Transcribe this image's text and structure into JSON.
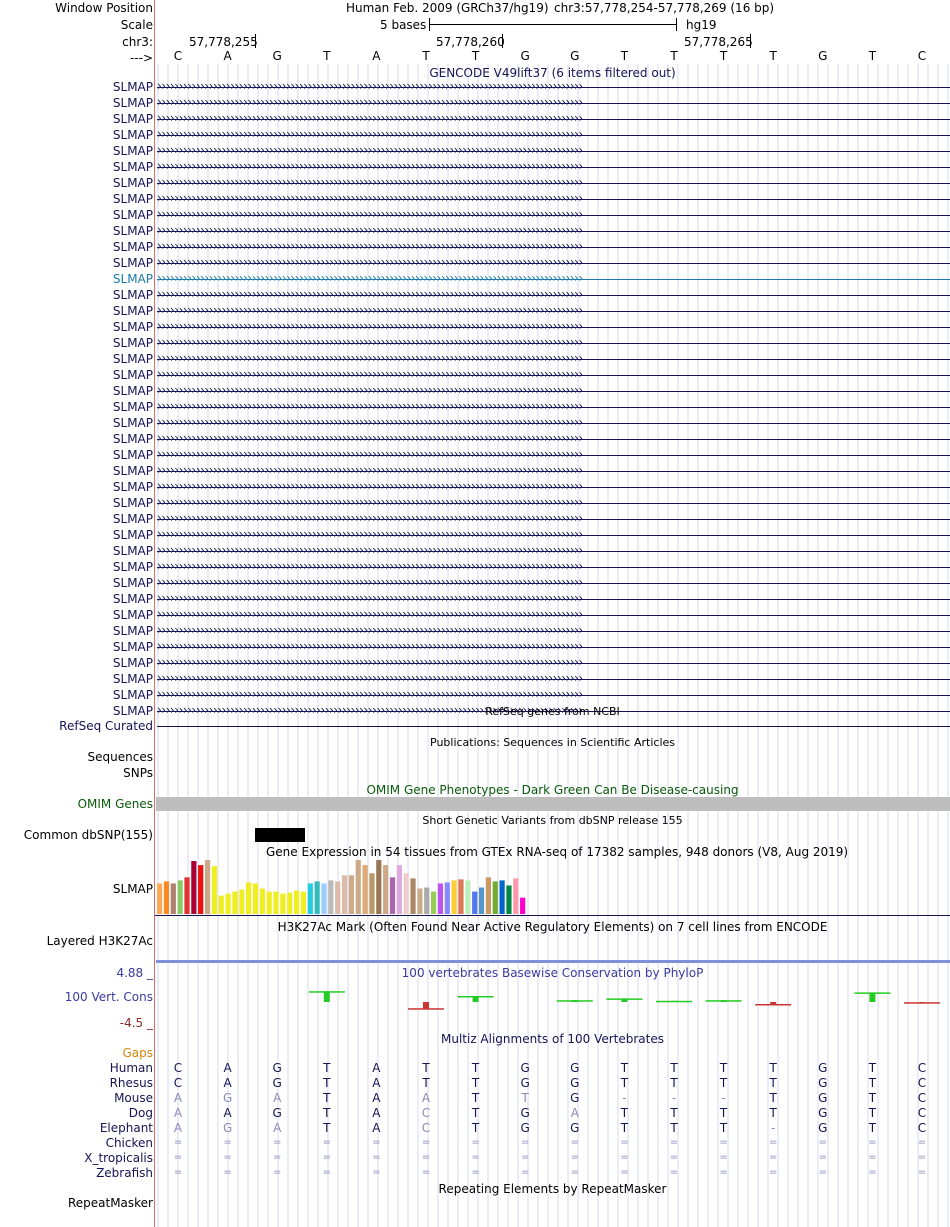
{
  "header": {
    "window_position_label": "Window Position",
    "assembly": "Human Feb. 2009 (GRCh37/hg19)",
    "position": "chr3:57,778,254-57,778,269 (16 bp)",
    "scale_label": "Scale",
    "scale_text": "5 bases",
    "db": "hg19",
    "chrom_label": "chr3:",
    "ticks": [
      "57,778,255",
      "57,778,260",
      "57,778,265"
    ],
    "arrow_label": "--->"
  },
  "bases": [
    "C",
    "A",
    "G",
    "T",
    "A",
    "T",
    "T",
    "G",
    "G",
    "T",
    "T",
    "T",
    "T",
    "G",
    "T",
    "C"
  ],
  "gencode": {
    "title": "GENCODE V49lift37 (6 items filtered out)",
    "items": [
      "SLMAP",
      "SLMAP",
      "SLMAP",
      "SLMAP",
      "SLMAP",
      "SLMAP",
      "SLMAP",
      "SLMAP",
      "SLMAP",
      "SLMAP",
      "SLMAP",
      "SLMAP",
      "SLMAP",
      "SLMAP",
      "SLMAP",
      "SLMAP",
      "SLMAP",
      "SLMAP",
      "SLMAP",
      "SLMAP",
      "SLMAP",
      "SLMAP",
      "SLMAP",
      "SLMAP",
      "SLMAP",
      "SLMAP",
      "SLMAP",
      "SLMAP",
      "SLMAP",
      "SLMAP",
      "SLMAP",
      "SLMAP",
      "SLMAP",
      "SLMAP",
      "SLMAP",
      "SLMAP",
      "SLMAP",
      "SLMAP",
      "SLMAP",
      "SLMAP"
    ],
    "highlight_index": 12
  },
  "refseq": {
    "title": "RefSeq genes from NCBI",
    "label": "RefSeq Curated"
  },
  "pubs": {
    "title": "Publications: Sequences in Scientific Articles",
    "label_1": "Sequences",
    "label_2": "SNPs"
  },
  "omim": {
    "title": "OMIM Gene Phenotypes - Dark Green Can Be Disease-causing",
    "label": "OMIM Genes"
  },
  "dbsnp": {
    "title": "Short Genetic Variants from dbSNP release 155",
    "label": "Common dbSNP(155)"
  },
  "gtex": {
    "title": "Gene Expression in 54 tissues from GTEx RNA-seq of 17382 samples, 948 donors (V8, Aug 2019)",
    "label": "SLMAP",
    "values": [
      30,
      32,
      30,
      33,
      36,
      52,
      48,
      53,
      47,
      18,
      20,
      22,
      24,
      31,
      30,
      25,
      22,
      22,
      20,
      21,
      23,
      22,
      30,
      32,
      30,
      33,
      32,
      38,
      38,
      53,
      48,
      40,
      53,
      48,
      36,
      48,
      40,
      35,
      25,
      26,
      22,
      30,
      31,
      33,
      34,
      33,
      22,
      26,
      36,
      32,
      33,
      28,
      35,
      16
    ],
    "colors": [
      "#ffaa55",
      "#ff8822",
      "#b08070",
      "#88cc66",
      "#dd3333",
      "#aa0033",
      "#ee1111",
      "#ccaa88",
      "#eeee22",
      "#eeee22",
      "#eeee22",
      "#eeee22",
      "#eeee22",
      "#eeee22",
      "#eeee22",
      "#eeee22",
      "#eeee22",
      "#eeee22",
      "#eeee22",
      "#eeee22",
      "#eeee22",
      "#eeee22",
      "#22ccdd",
      "#33bbbb",
      "#99ccff",
      "#bbbbbb",
      "#ddbbaa",
      "#ddbbaa",
      "#ccaa88",
      "#ccaa88",
      "#ddaa77",
      "#bb9966",
      "#997755",
      "#ccaa88",
      "#aa66aa",
      "#ddaadd",
      "#eecccc",
      "#aa8866",
      "#ccaa88",
      "#aaaaaa",
      "#99cc55",
      "#bb55ee",
      "#8888ff",
      "#ffcc33",
      "#dd7755",
      "#bbeebb",
      "#5577ee",
      "#5599cc",
      "#cc9966",
      "#77aa33",
      "#0066cc",
      "#008844",
      "#ff99aa",
      "#ff00cc"
    ]
  },
  "h3k27ac": {
    "title": "H3K27Ac Mark (Often Found Near Active Regulatory Elements) on 7 cell lines from ENCODE",
    "label": "Layered H3K27Ac"
  },
  "cons": {
    "title": "100 vertebrates Basewise Conservation by PhyloP",
    "label": "100 Vert. Cons",
    "max": "4.88 _",
    "min": "-4.5 _",
    "scores": [
      0,
      0,
      0,
      1.8,
      0,
      -1.2,
      1.0,
      0,
      0.3,
      0.6,
      0.2,
      0.3,
      -0.5,
      0,
      1.6,
      -0.2
    ]
  },
  "multiz": {
    "title": "Multiz Alignments of 100 Vertebrates",
    "gaps_label": "Gaps",
    "species": [
      {
        "name": "Human",
        "bases": [
          "C",
          "A",
          "G",
          "T",
          "A",
          "T",
          "T",
          "G",
          "G",
          "T",
          "T",
          "T",
          "T",
          "G",
          "T",
          "C"
        ]
      },
      {
        "name": "Rhesus",
        "bases": [
          "C",
          "A",
          "G",
          "T",
          "A",
          "T",
          "T",
          "G",
          "G",
          "T",
          "T",
          "T",
          "T",
          "G",
          "T",
          "C"
        ]
      },
      {
        "name": "Mouse",
        "bases": [
          "A",
          "G",
          "A",
          "T",
          "A",
          "A",
          "T",
          "T",
          "G",
          "-",
          "-",
          "-",
          "T",
          "G",
          "T",
          "C"
        ]
      },
      {
        "name": "Dog",
        "bases": [
          "A",
          "A",
          "G",
          "T",
          "A",
          "C",
          "T",
          "G",
          "A",
          "T",
          "T",
          "T",
          "T",
          "G",
          "T",
          "C"
        ]
      },
      {
        "name": "Elephant",
        "bases": [
          "A",
          "G",
          "A",
          "T",
          "A",
          "C",
          "T",
          "G",
          "G",
          "T",
          "T",
          "T",
          "-",
          "G",
          "T",
          "C"
        ]
      },
      {
        "name": "Chicken",
        "bases": [
          "=",
          "=",
          "=",
          "=",
          "=",
          "=",
          "=",
          "=",
          "=",
          "=",
          "=",
          "=",
          "=",
          "=",
          "=",
          "="
        ]
      },
      {
        "name": "X_tropicalis",
        "bases": [
          "=",
          "=",
          "=",
          "=",
          "=",
          "=",
          "=",
          "=",
          "=",
          "=",
          "=",
          "=",
          "=",
          "=",
          "=",
          "="
        ]
      },
      {
        "name": "Zebrafish",
        "bases": [
          "=",
          "=",
          "=",
          "=",
          "=",
          "=",
          "=",
          "=",
          "=",
          "=",
          "=",
          "=",
          "=",
          "=",
          "=",
          "="
        ]
      }
    ]
  },
  "repeat": {
    "title": "Repeating Elements by RepeatMasker",
    "label": "RepeatMasker"
  }
}
